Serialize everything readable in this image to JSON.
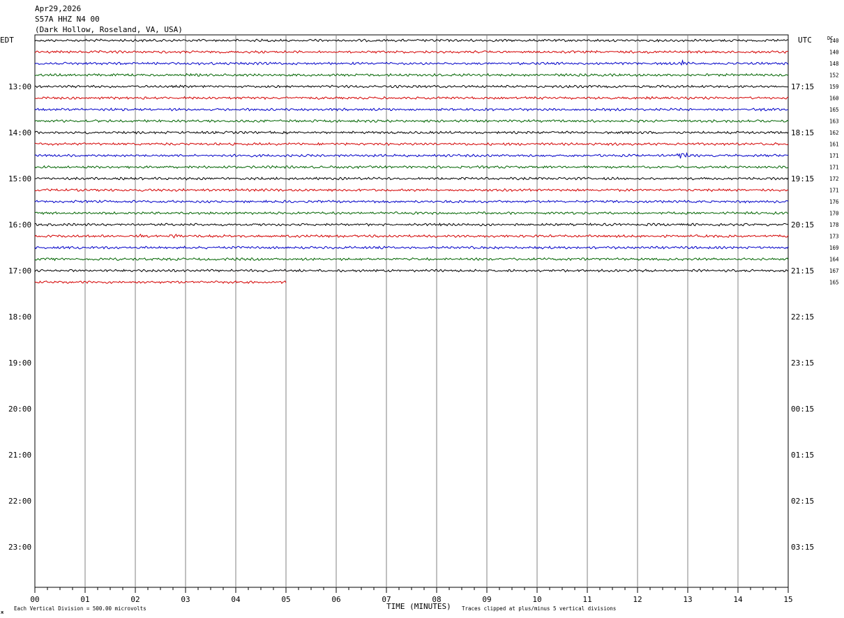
{
  "header": {
    "date": "Apr29,2026",
    "station": "S57A HHZ N4 00",
    "location": "(Dark Hollow, Roseland, VA, USA)"
  },
  "labels": {
    "left_tz": "EDT",
    "right_tz": "UTC",
    "dc": "DC",
    "xlabel": "TIME (MINUTES)",
    "footer_left": "Each Vertical Division =  500.00 microvolts",
    "footer_right": "Traces clipped at plus/minus 5 vertical divisions",
    "corner_mark": "ж"
  },
  "colors": {
    "trace_cycle": [
      "#000000",
      "#d40000",
      "#0000c8",
      "#006400"
    ],
    "grid": "#808080"
  },
  "chart_data": {
    "type": "helicorder",
    "x_range_minutes": [
      0,
      15
    ],
    "x_ticks": [
      "00",
      "01",
      "02",
      "03",
      "04",
      "05",
      "06",
      "07",
      "08",
      "09",
      "10",
      "11",
      "12",
      "13",
      "14",
      "15"
    ],
    "left_time_labels": [
      "13:00",
      "14:00",
      "15:00",
      "16:00",
      "17:00",
      "18:00",
      "19:00",
      "20:00",
      "21:00",
      "22:00",
      "23:00"
    ],
    "right_time_labels": [
      "17:15",
      "18:15",
      "19:15",
      "20:15",
      "21:15",
      "22:15",
      "23:15",
      "00:15",
      "01:15",
      "02:15",
      "03:15"
    ],
    "dc_offsets": [
      "140",
      "140",
      "148",
      "152",
      "159",
      "160",
      "165",
      "163",
      "162",
      "161",
      "171",
      "171",
      "172",
      "171",
      "176",
      "170",
      "178",
      "173",
      "169",
      "164",
      "167",
      "165"
    ],
    "trace_count": 22,
    "last_trace_end_minute": 5,
    "events": [
      {
        "trace": 2,
        "minute": 12.9,
        "amplitude": "small"
      },
      {
        "trace": 10,
        "minute": 12.9,
        "amplitude": "large"
      },
      {
        "trace": 17,
        "minute": 2.1,
        "amplitude": "small"
      },
      {
        "trace": 17,
        "minute": 2.8,
        "amplitude": "small"
      }
    ]
  }
}
